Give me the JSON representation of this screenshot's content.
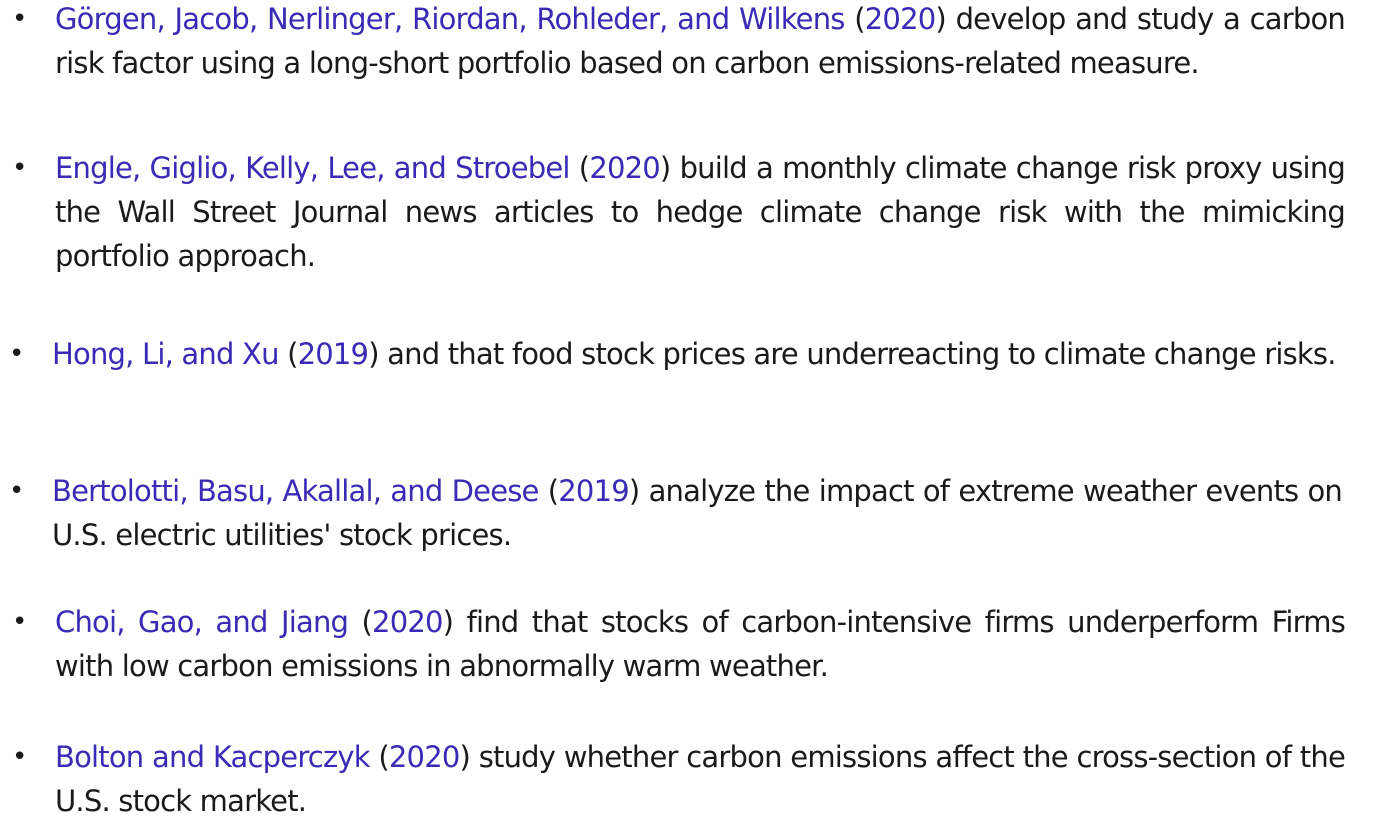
{
  "bullet_symbol": "•",
  "colors": {
    "citation": "#3a2ab5",
    "body_text": "#1a1a1a"
  },
  "items": [
    {
      "authors": "Görgen, Jacob, Nerlinger, Riordan, Rohleder, and Wilkens",
      "year": "2020",
      "text": "develop and study a carbon risk factor using a long-short portfolio based on carbon emissions-related measure."
    },
    {
      "authors": "Engle, Giglio, Kelly, Lee, and Stroebel",
      "year": "2020",
      "text": "build a monthly climate change risk proxy using the Wall Street Journal news articles to hedge climate change risk with the mimicking portfolio approach."
    },
    {
      "authors": "Hong, Li, and Xu",
      "year": "2019",
      "text": "and that food stock prices are underreacting to climate change risks."
    },
    {
      "authors": "Bertolotti, Basu, Akallal, and Deese",
      "year": "2019",
      "text": "analyze the impact of extreme weather events on U.S. electric utilities' stock prices."
    },
    {
      "authors": "Choi, Gao, and Jiang",
      "year": "2020",
      "text": "find that stocks of carbon-intensive firms underperform Firms with low carbon emissions in abnormally warm weather."
    },
    {
      "authors": "Bolton and Kacperczyk",
      "year": "2020",
      "text": "study whether carbon emissions affect the cross-section of the U.S. stock market."
    }
  ]
}
